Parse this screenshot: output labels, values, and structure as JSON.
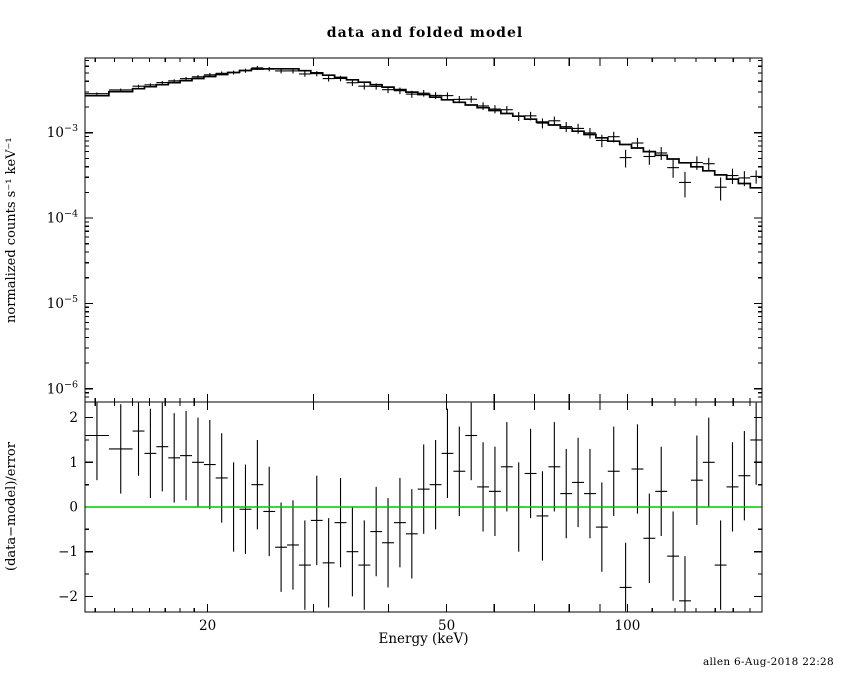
{
  "footer": "allen  6-Aug-2018 22:28",
  "colors": {
    "foreground": "#000000",
    "background": "#ffffff",
    "zero_line": "#00c800"
  },
  "chart_data": {
    "type": "line",
    "title": "data and folded model",
    "xlabel": "Energy (keV)",
    "xscale": "log",
    "xlim": [
      12.5,
      167.5
    ],
    "x_ticks_major": [
      20,
      50,
      100
    ],
    "x_ticks_medium": [
      30,
      40,
      60,
      70,
      80,
      90
    ],
    "x_ticks_minor": [
      13,
      14,
      15,
      16,
      17,
      18,
      19,
      110,
      120,
      130,
      140,
      150,
      160
    ],
    "panels": [
      {
        "name": "spectrum",
        "ylabel": "normalized counts s⁻¹ keV⁻¹",
        "yscale": "log",
        "ylim": [
          7e-07,
          0.0075
        ],
        "y_ticks_exponents": [
          -3,
          -4,
          -5,
          -6
        ],
        "series": [
          {
            "name": "folded model",
            "style": "histogram-step",
            "color": "#000000"
          },
          {
            "name": "data",
            "style": "cross-errorbar",
            "color": "#000000"
          }
        ]
      },
      {
        "name": "residuals",
        "ylabel": "(data−model)/error",
        "yscale": "linear",
        "ylim": [
          -2.35,
          2.35
        ],
        "y_ticks": [
          2,
          1,
          0,
          -1,
          -2
        ],
        "zero_line_color": "#00c800"
      }
    ],
    "bins": {
      "energy_edges_keV": [
        12.5,
        13.7,
        15.0,
        15.7,
        16.43,
        17.2,
        18.0,
        18.84,
        19.72,
        20.63,
        21.6,
        22.6,
        23.66,
        24.76,
        25.91,
        27.12,
        28.38,
        29.71,
        31.09,
        32.54,
        34.06,
        35.64,
        37.31,
        39.04,
        40.86,
        42.77,
        44.76,
        46.85,
        49.03,
        51.31,
        53.7,
        56.2,
        58.82,
        61.56,
        64.43,
        67.43,
        70.57,
        73.86,
        77.3,
        80.9,
        84.67,
        88.61,
        92.74,
        97.06,
        101.58,
        106.31,
        111.26,
        116.45,
        121.87,
        127.55,
        133.49,
        139.71,
        146.22,
        153.03,
        160.16,
        167.5
      ],
      "model": [
        0.00271,
        0.00302,
        0.00328,
        0.00346,
        0.00365,
        0.00386,
        0.00408,
        0.00431,
        0.00455,
        0.0048,
        0.00507,
        0.00535,
        0.00558,
        0.0056,
        0.0056,
        0.0056,
        0.00533,
        0.00502,
        0.00472,
        0.00443,
        0.00416,
        0.0039,
        0.00365,
        0.00342,
        0.0032,
        0.00299,
        0.0028,
        0.00261,
        0.00243,
        0.00227,
        0.00211,
        0.00196,
        0.00182,
        0.00168,
        0.00156,
        0.00144,
        0.00133,
        0.00123,
        0.00113,
        0.00104,
        0.000952,
        0.000872,
        0.000796,
        0.000727,
        0.000661,
        0.000601,
        0.000544,
        0.000492,
        0.000444,
        0.000399,
        0.000358,
        0.00032,
        0.000286,
        0.000254,
        0.000226
      ],
      "data": [
        0.002866,
        0.003171,
        0.003507,
        0.003635,
        0.003865,
        0.004052,
        0.004299,
        0.004518,
        0.004766,
        0.004961,
        0.00507,
        0.005335,
        0.00574,
        0.005567,
        0.005291,
        0.005298,
        0.004875,
        0.004918,
        0.004305,
        0.004317,
        0.003847,
        0.003505,
        0.003488,
        0.003192,
        0.003103,
        0.00283,
        0.002904,
        0.002735,
        0.002719,
        0.002456,
        0.002468,
        0.002057,
        0.001892,
        0.001858,
        0.00156,
        0.001576,
        0.001295,
        0.001379,
        0.001177,
        0.001122,
        0.0009946,
        0.0008115,
        0.0008977,
        0.0005109,
        0.000757,
        0.0005266,
        0.0005788,
        0.0003896,
        0.0002614,
        0.0004475,
        0.000433,
        0.0002298,
        0.0003149,
        0.0002953,
        0.0003074
      ],
      "data_err": [
        9.76e-05,
        0.0001163,
        0.0001335,
        0.0001457,
        0.0001591,
        0.0001741,
        0.0001905,
        0.0002082,
        0.0002275,
        0.0002482,
        0.0002712,
        0.0002964,
        0.0003197,
        0.0003321,
        0.0003433,
        0.0003556,
        0.0003502,
        0.0003414,
        0.0003318,
        0.0003225,
        0.0003132,
        0.0003038,
        0.0002942,
        0.0002852,
        0.0002762,
        0.000267,
        0.000259,
        0.0002498,
        0.0002406,
        0.0002327,
        0.0002237,
        0.000215,
        0.0002066,
        0.0001974,
        0.0001895,
        0.0001812,
        0.000173,
        0.0001657,
        0.0001574,
        0.00015,
        0.000142,
        0.0001346,
        0.0001271,
        0.0001201,
        0.000113,
        0.0001063,
        9.95e-05,
        9.31e-05,
        8.69e-05,
        8.08e-05,
        7.5e-05,
        6.94e-05,
        6.42e-05,
        5.9e-05,
        5.42e-05
      ],
      "resid": [
        1.6,
        1.3,
        1.7,
        1.2,
        1.35,
        1.1,
        1.15,
        1.0,
        0.95,
        0.65,
        0.0,
        -0.05,
        0.5,
        -0.1,
        -0.9,
        -0.85,
        -1.3,
        -0.3,
        -1.25,
        -0.35,
        -1.0,
        -1.3,
        -0.55,
        -0.8,
        -0.35,
        -0.6,
        0.4,
        0.5,
        1.2,
        0.8,
        1.6,
        0.45,
        0.35,
        0.9,
        0.0,
        0.75,
        -0.2,
        0.9,
        0.3,
        0.55,
        0.3,
        -0.45,
        0.8,
        -1.8,
        0.85,
        -0.7,
        0.35,
        -1.1,
        -2.1,
        0.6,
        1.0,
        -1.3,
        0.45,
        0.7,
        1.5
      ],
      "resid_err": 1.0
    }
  }
}
